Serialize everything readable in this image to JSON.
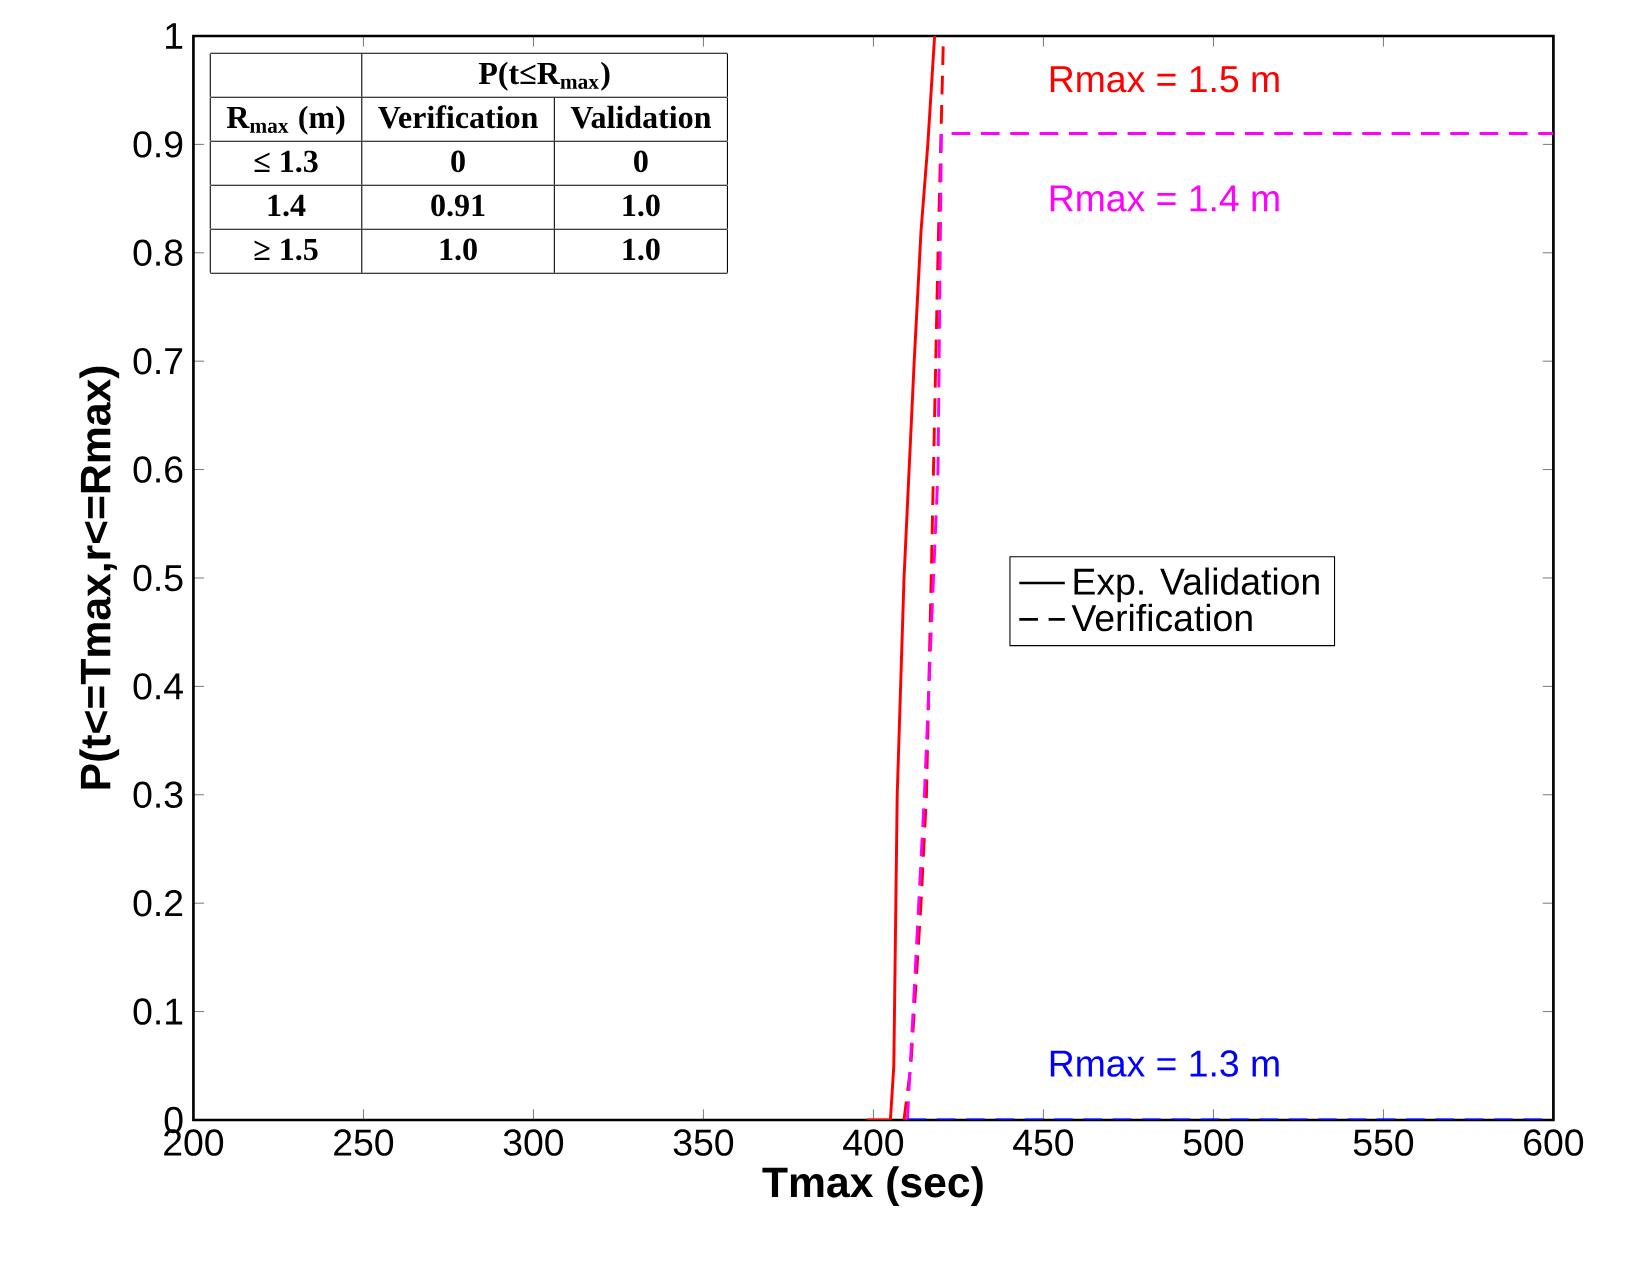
{
  "chart_data": {
    "type": "line",
    "xlabel": "Tmax (sec)",
    "ylabel": "P(t<=Tmax,r<=Rmax)",
    "xlim": [
      200,
      600
    ],
    "ylim": [
      0,
      1
    ],
    "xticks": [
      200,
      250,
      300,
      350,
      400,
      450,
      500,
      550,
      600
    ],
    "yticks": [
      0,
      0.1,
      0.2,
      0.3,
      0.4,
      0.5,
      0.6,
      0.7,
      0.8,
      0.9,
      1
    ],
    "legend": "right",
    "grid": false,
    "series": [
      {
        "name": "Exp. Validation",
        "color": "#ff0000",
        "line_style": "solid",
        "x": [
          398,
          405,
          406,
          407,
          409,
          412,
          414,
          416,
          418
        ],
        "values": [
          0,
          0,
          0.05,
          0.3,
          0.5,
          0.7,
          0.82,
          0.9,
          1
        ]
      },
      {
        "name": "Verification",
        "color": "#ff0000",
        "line_style": "dashed",
        "x": [
          409,
          411,
          414,
          415.6,
          417,
          419,
          420.6
        ],
        "values": [
          0,
          0.05,
          0.2,
          0.3,
          0.5,
          0.8,
          1
        ]
      },
      {
        "color": "#ff00ff",
        "line_style": "dashed",
        "x": [
          410,
          415,
          419,
          420,
          600
        ],
        "values": [
          0,
          0.3,
          0.6,
          0.91,
          0.91
        ]
      },
      {
        "color": "#0000ff",
        "line_style": "dashed",
        "x": [
          410,
          600
        ],
        "values": [
          0,
          0
        ]
      }
    ],
    "annotations": [
      "P(t≤R$_{max}$)",
      "R$_{max}$ (m)",
      "Verification",
      "Validation",
      "≤ 1.3",
      "0",
      "0",
      "1.4",
      "0.91",
      "1.0",
      "≥ 1.5",
      "1.0",
      "1.0",
      "Rmax = 1.5 m",
      "Rmax = 1.4 m",
      "Rmax = 1.3 m"
    ]
  }
}
